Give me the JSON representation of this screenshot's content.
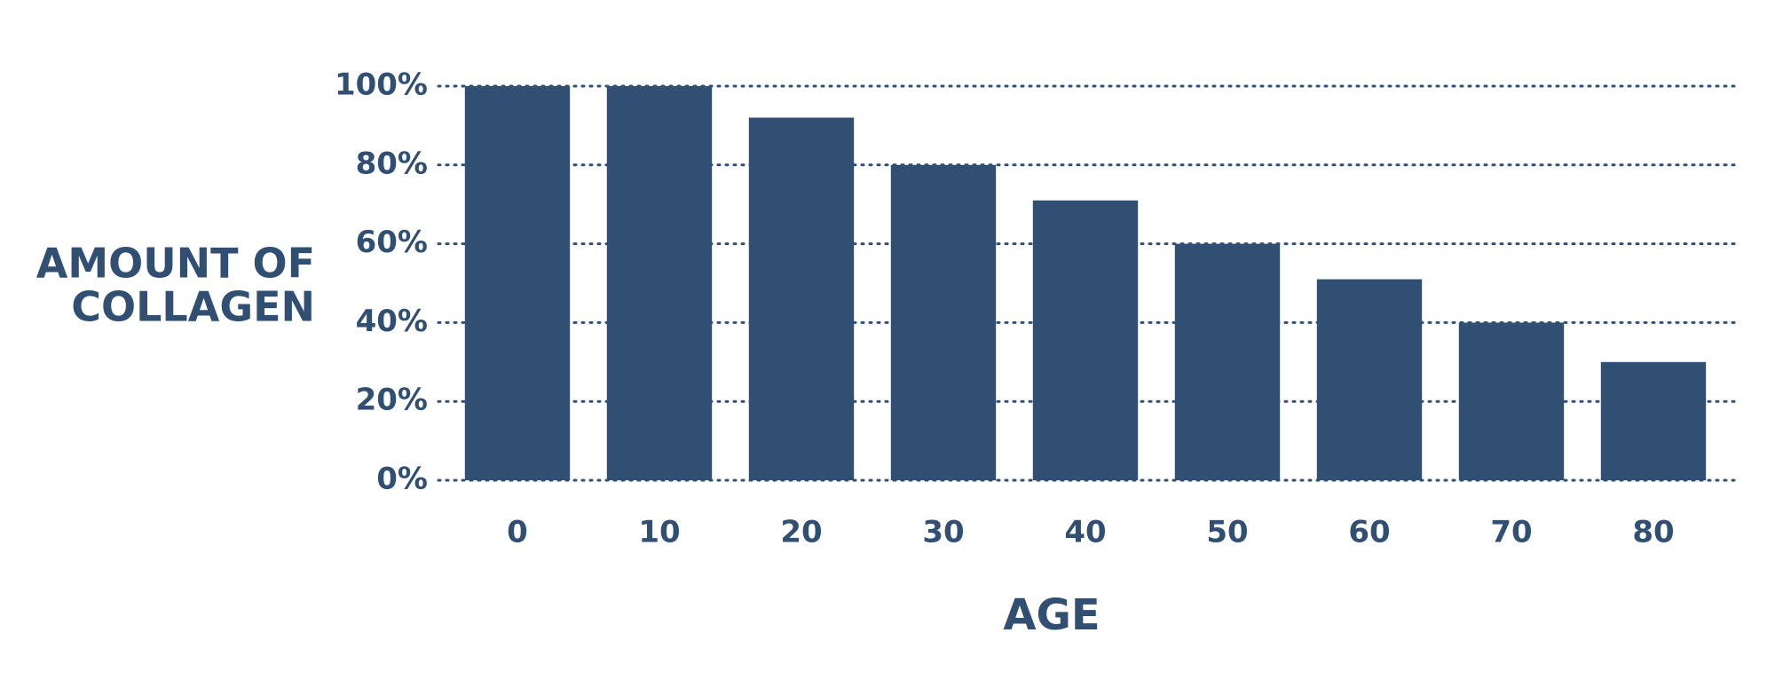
{
  "chart_data": {
    "type": "bar",
    "y_label": [
      "AMOUNT OF",
      "COLLAGEN"
    ],
    "x_label": "AGE",
    "categories": [
      "0",
      "10",
      "20",
      "30",
      "40",
      "50",
      "60",
      "70",
      "80"
    ],
    "values": [
      100,
      100,
      92,
      80,
      71,
      60,
      51,
      40,
      30
    ],
    "color": "#304f72",
    "ylim": [
      0,
      100
    ],
    "yticks": [
      {
        "value": 0,
        "label": "0%"
      },
      {
        "value": 20,
        "label": "20%"
      },
      {
        "value": 40,
        "label": "40%"
      },
      {
        "value": 60,
        "label": "60%"
      },
      {
        "value": 80,
        "label": "80%"
      },
      {
        "value": 100,
        "label": "100%"
      }
    ],
    "grid": true
  }
}
